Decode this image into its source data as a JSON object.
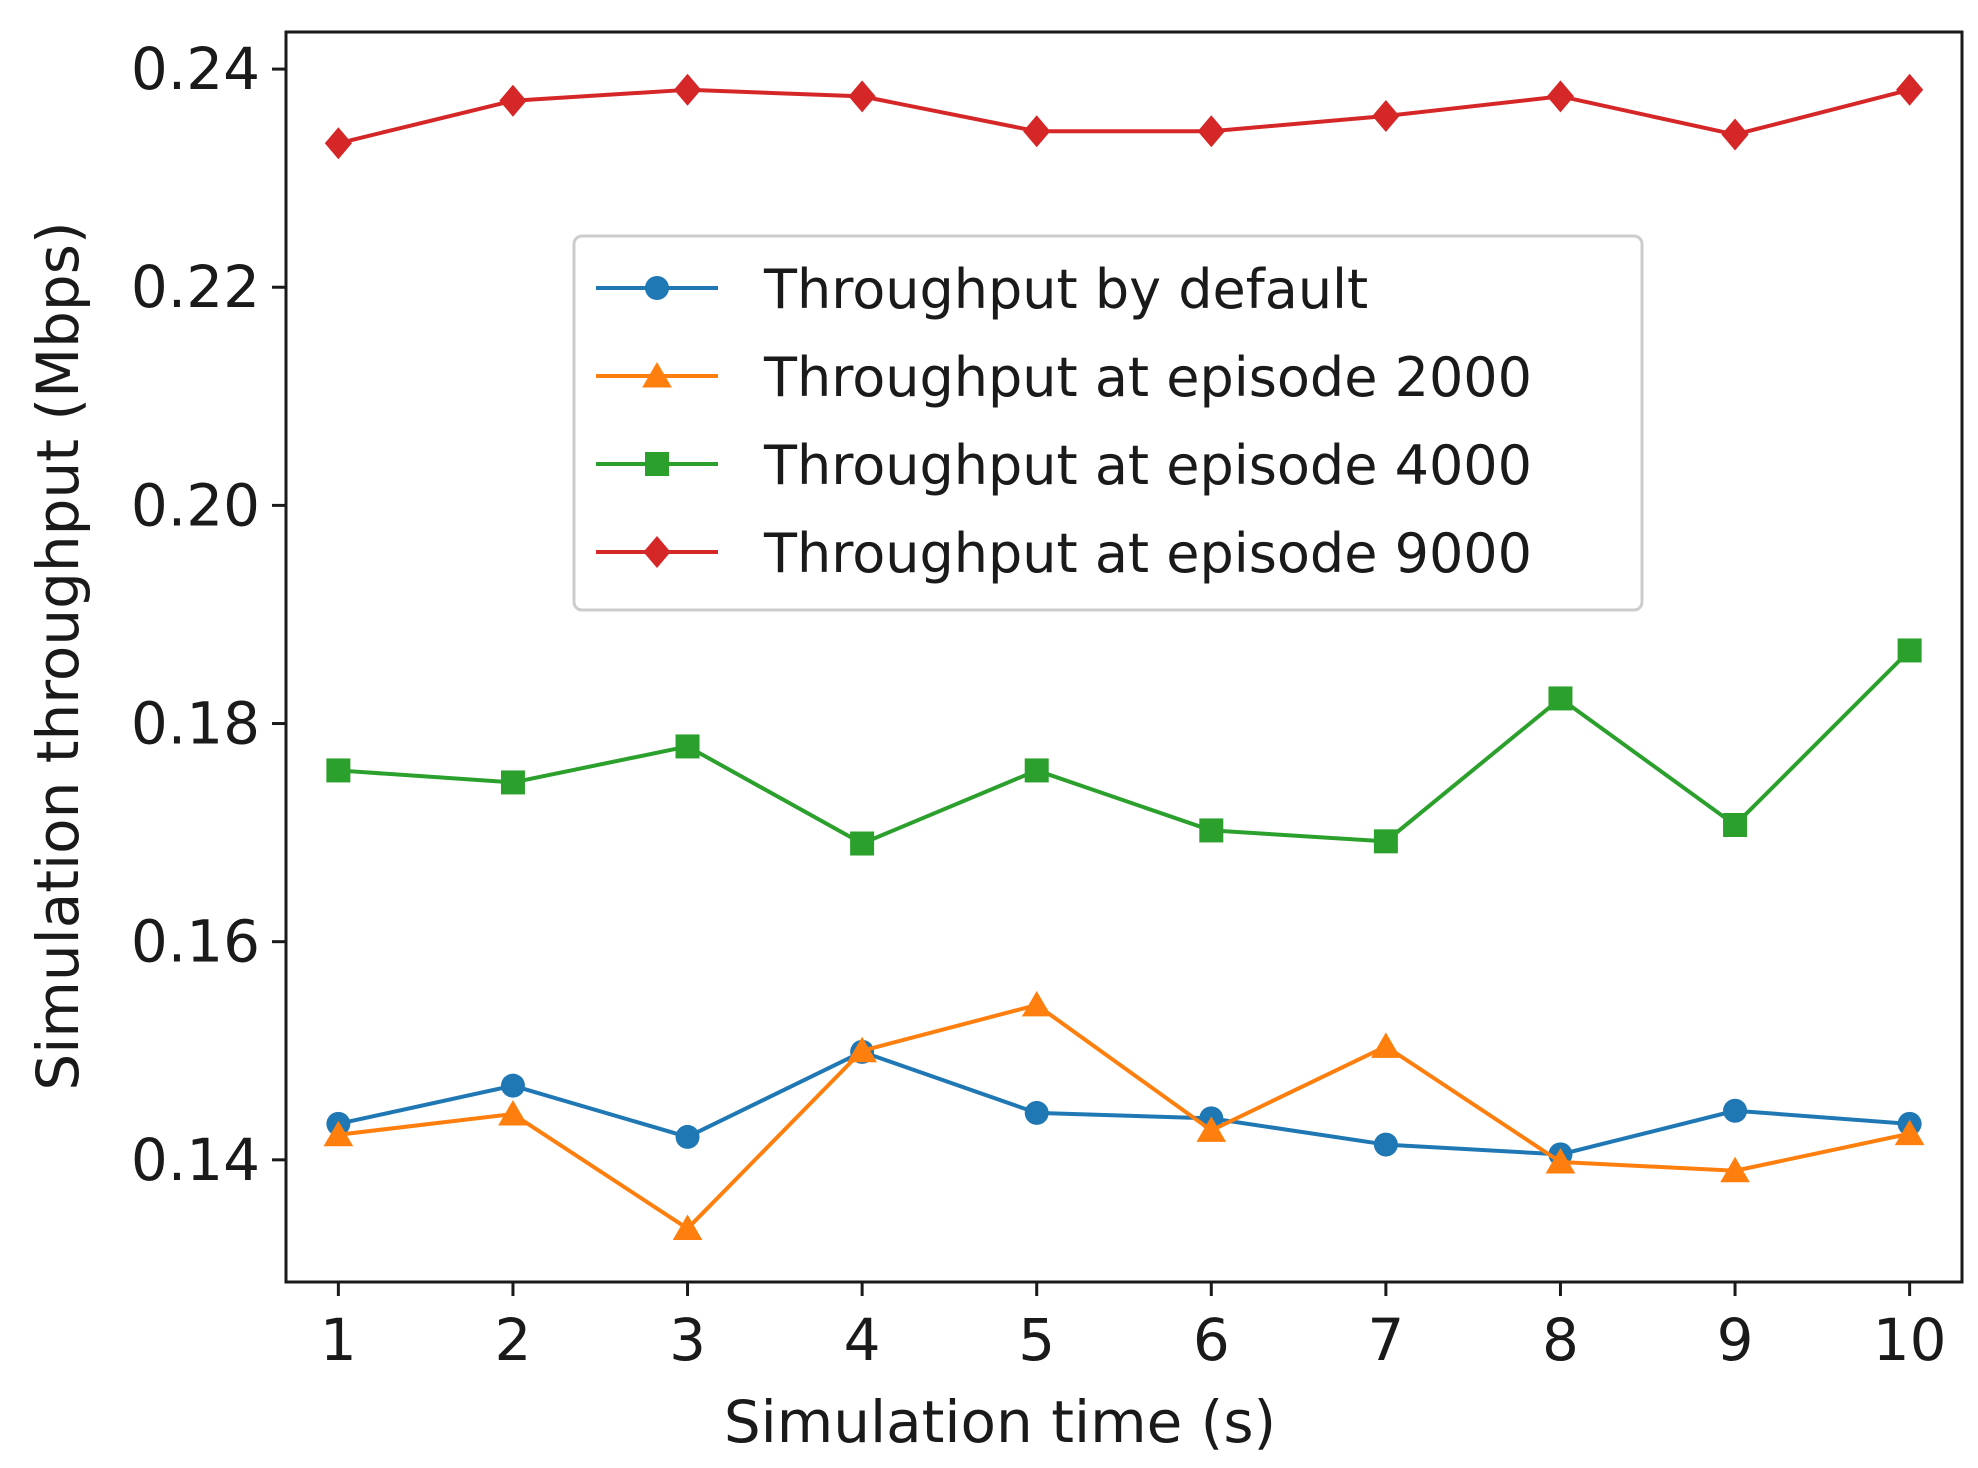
{
  "chart_data": {
    "type": "line",
    "title": "",
    "xlabel": "Simulation time (s)",
    "ylabel": "Simulation throughput (Mbps)",
    "x": [
      1,
      2,
      3,
      4,
      5,
      6,
      7,
      8,
      9,
      10
    ],
    "x_ticks": [
      "1",
      "2",
      "3",
      "4",
      "5",
      "6",
      "7",
      "8",
      "9",
      "10"
    ],
    "y_ticks": [
      "0.14",
      "0.16",
      "0.18",
      "0.20",
      "0.22",
      "0.24"
    ],
    "xlim": [
      0.7,
      10.3
    ],
    "ylim": [
      0.1288,
      0.2434
    ],
    "grid": false,
    "legend_position": "upper-center",
    "series": [
      {
        "name": "Throughput by default",
        "color": "#1f77b4",
        "marker": "circle",
        "values": [
          0.1433,
          0.1468,
          0.1421,
          0.1499,
          0.1443,
          0.1438,
          0.1414,
          0.1405,
          0.1445,
          0.1433
        ]
      },
      {
        "name": "Throughput at episode 2000",
        "color": "#ff7f0e",
        "marker": "triangle",
        "values": [
          0.1423,
          0.1442,
          0.1337,
          0.15,
          0.1542,
          0.1427,
          0.1504,
          0.1398,
          0.139,
          0.1424
        ]
      },
      {
        "name": "Throughput at episode 4000",
        "color": "#2ca02c",
        "marker": "square",
        "values": [
          0.1757,
          0.1746,
          0.1779,
          0.169,
          0.1757,
          0.1702,
          0.1692,
          0.1823,
          0.1707,
          0.1867
        ]
      },
      {
        "name": "Throughput at episode 9000",
        "color": "#d62728",
        "marker": "diamond",
        "values": [
          0.2332,
          0.2371,
          0.2381,
          0.2375,
          0.2343,
          0.2343,
          0.2357,
          0.2375,
          0.234,
          0.2381
        ]
      }
    ]
  }
}
